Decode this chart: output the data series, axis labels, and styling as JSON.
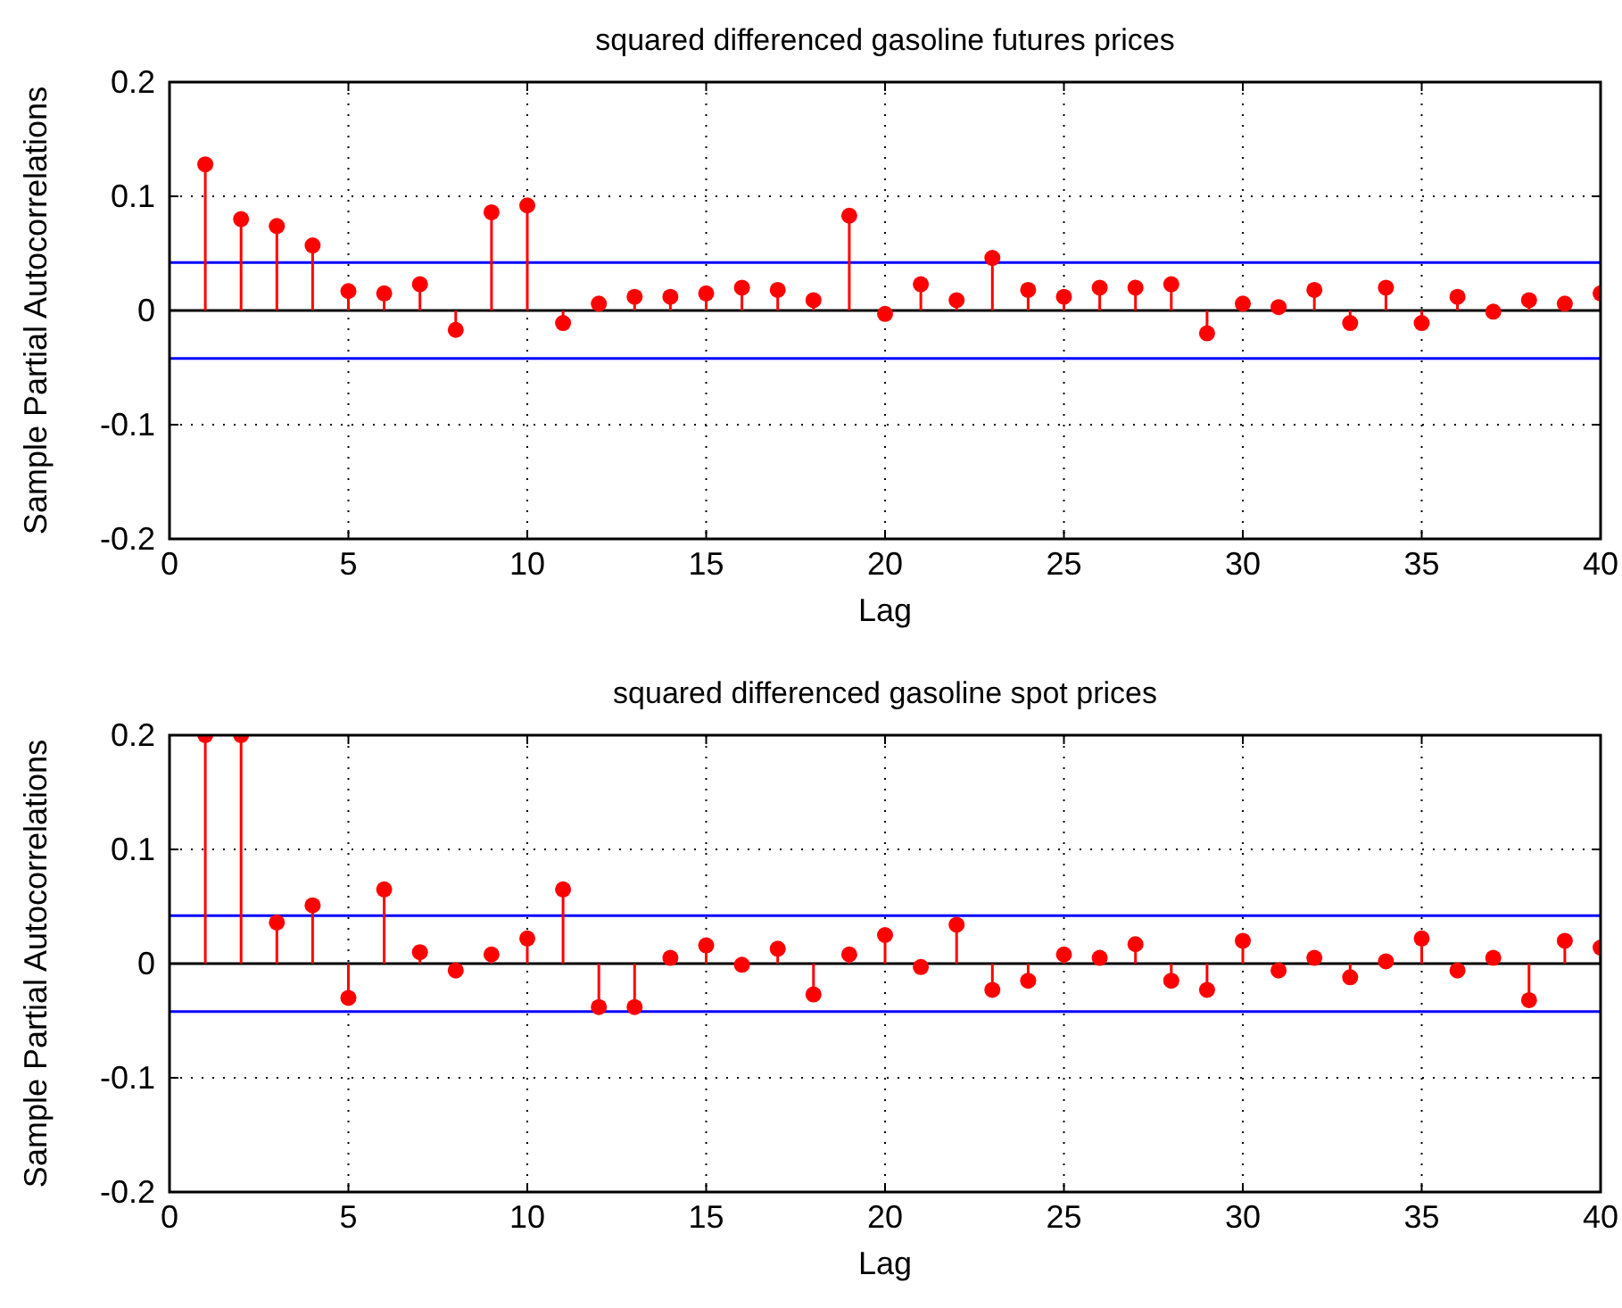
{
  "chart_data": [
    {
      "type": "lollipop",
      "title": "squared differenced gasoline futures prices",
      "xlabel": "Lag",
      "ylabel": "Sample Partial Autocorrelations",
      "x": [
        1,
        2,
        3,
        4,
        5,
        6,
        7,
        8,
        9,
        10,
        11,
        12,
        13,
        14,
        15,
        16,
        17,
        18,
        19,
        20,
        21,
        22,
        23,
        24,
        25,
        26,
        27,
        28,
        29,
        30,
        31,
        32,
        33,
        34,
        35,
        36,
        37,
        38,
        39,
        40
      ],
      "series": [
        {
          "color": "#ff0000",
          "values": [
            0.128,
            0.08,
            0.074,
            0.057,
            0.017,
            0.015,
            0.023,
            -0.017,
            0.086,
            0.092,
            -0.011,
            0.006,
            0.012,
            0.012,
            0.015,
            0.02,
            0.018,
            0.009,
            0.083,
            -0.003,
            0.023,
            0.009,
            0.046,
            0.018,
            0.012,
            0.02,
            0.02,
            0.023,
            -0.02,
            0.006,
            0.003,
            0.018,
            -0.011,
            0.02,
            -0.011,
            0.012,
            -0.001,
            0.009,
            0.006,
            0.015
          ]
        }
      ],
      "marker": "circle",
      "xlim": [
        0,
        40
      ],
      "xticks": [
        0,
        5,
        10,
        15,
        20,
        25,
        30,
        35,
        40
      ],
      "ylim": [
        -0.2,
        0.2
      ],
      "yticks": [
        -0.2,
        -0.1,
        0,
        0.1,
        0.2
      ],
      "grid": true,
      "ref_lines": [
        {
          "axis": "y",
          "value": 0.042,
          "color": "#0000ff"
        },
        {
          "axis": "y",
          "value": -0.042,
          "color": "#0000ff"
        },
        {
          "axis": "y",
          "value": 0,
          "color": "#000000"
        }
      ]
    },
    {
      "type": "lollipop",
      "title": "squared differenced gasoline spot prices",
      "xlabel": "Lag",
      "ylabel": "Sample Partial Autocorrelations",
      "x": [
        1,
        2,
        3,
        4,
        5,
        6,
        7,
        8,
        9,
        10,
        11,
        12,
        13,
        14,
        15,
        16,
        17,
        18,
        19,
        20,
        21,
        22,
        23,
        24,
        25,
        26,
        27,
        28,
        29,
        30,
        31,
        32,
        33,
        34,
        35,
        36,
        37,
        38,
        39,
        40
      ],
      "series": [
        {
          "color": "#ff0000",
          "values": [
            0.2,
            0.2,
            0.036,
            0.051,
            -0.03,
            0.065,
            0.01,
            -0.006,
            0.008,
            0.022,
            0.065,
            -0.038,
            -0.038,
            0.005,
            0.016,
            -0.001,
            0.013,
            -0.027,
            0.008,
            0.025,
            -0.003,
            0.034,
            -0.023,
            -0.015,
            0.008,
            0.005,
            0.017,
            -0.015,
            -0.023,
            0.02,
            -0.006,
            0.005,
            -0.012,
            0.002,
            0.022,
            -0.006,
            0.005,
            -0.032,
            0.02,
            0.014
          ]
        }
      ],
      "marker": "circle",
      "xlim": [
        0,
        40
      ],
      "xticks": [
        0,
        5,
        10,
        15,
        20,
        25,
        30,
        35,
        40
      ],
      "ylim": [
        -0.2,
        0.2
      ],
      "yticks": [
        -0.2,
        -0.1,
        0,
        0.1,
        0.2
      ],
      "grid": true,
      "ref_lines": [
        {
          "axis": "y",
          "value": 0.042,
          "color": "#0000ff"
        },
        {
          "axis": "y",
          "value": -0.042,
          "color": "#0000ff"
        },
        {
          "axis": "y",
          "value": 0,
          "color": "#000000"
        }
      ]
    }
  ]
}
